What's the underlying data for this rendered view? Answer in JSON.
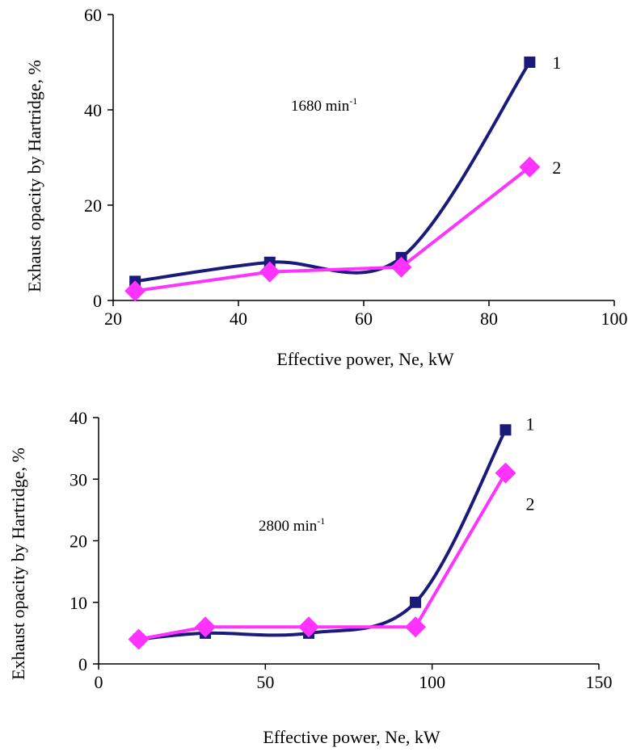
{
  "chart_data": [
    {
      "type": "line",
      "annotation": "1680 min",
      "annotation_sup": "-1",
      "xlabel": "Effective power, Ne, kW",
      "ylabel": "Exhaust opacity by Hartridge, %",
      "xlim": [
        20,
        100
      ],
      "ylim": [
        0,
        60
      ],
      "xticks": [
        20,
        40,
        60,
        80,
        100
      ],
      "yticks": [
        0,
        20,
        40,
        60
      ],
      "grid": false,
      "series": [
        {
          "label": "1",
          "color": "#1a1a7a",
          "marker": "square",
          "smooth": true,
          "x": [
            23.5,
            45,
            66,
            86.5
          ],
          "y": [
            4,
            8,
            9,
            50
          ]
        },
        {
          "label": "2",
          "color": "#ff33ff",
          "marker": "diamond",
          "smooth": false,
          "x": [
            23.5,
            45,
            66,
            86.5
          ],
          "y": [
            2,
            6,
            7,
            28
          ]
        }
      ]
    },
    {
      "type": "line",
      "annotation": "2800 min",
      "annotation_sup": "-1",
      "xlabel": "Effective power, Ne, kW",
      "ylabel": "Exhaust opacity by Hartridge, %",
      "xlim": [
        0,
        150
      ],
      "ylim": [
        0,
        40
      ],
      "xticks": [
        0,
        50,
        100,
        150
      ],
      "yticks": [
        0,
        10,
        20,
        30,
        40
      ],
      "grid": false,
      "series": [
        {
          "label": "1",
          "color": "#1a1a7a",
          "marker": "square",
          "smooth": true,
          "x": [
            12,
            32,
            63,
            95,
            122
          ],
          "y": [
            4,
            5,
            5,
            10,
            38
          ]
        },
        {
          "label": "2",
          "color": "#ff33ff",
          "marker": "diamond",
          "smooth": false,
          "x": [
            12,
            32,
            63,
            95,
            122
          ],
          "y": [
            4,
            6,
            6,
            6,
            31
          ]
        }
      ]
    }
  ]
}
